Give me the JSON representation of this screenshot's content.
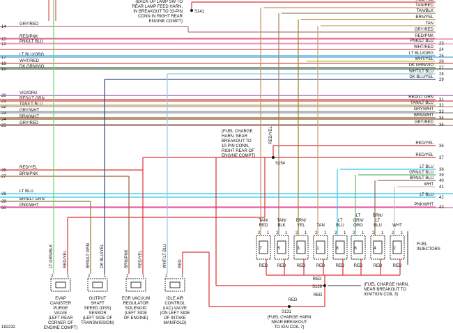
{
  "image_id": "182232",
  "pin_numbers": [
    "2",
    "1"
  ],
  "left_pins": [
    {
      "number": "14",
      "wire": "GRY/RED",
      "color": "#b07878"
    },
    {
      "number": "15",
      "wire": "RED/PNK",
      "color": "#e07090"
    },
    {
      "number": "16",
      "wire": "PNK/LT BLU",
      "color": "#e8a0c8"
    },
    {
      "number": "17",
      "wire": "LT BLU/ORG",
      "color": "#48a8d8"
    },
    {
      "number": "18",
      "wire": "WHT/RED",
      "color": "#d05050"
    },
    {
      "number": "19",
      "wire": "DK GRN/VIO",
      "color": "#406848"
    },
    {
      "number": "20",
      "wire": "VIO/ORG",
      "color": "#9060a8"
    },
    {
      "number": "21",
      "wire": "RED/LT GRN",
      "color": "#d04040"
    },
    {
      "number": "22",
      "wire": "TAN/LT BLU",
      "color": "#b89868"
    },
    {
      "number": "23",
      "wire": "GRY/WHT",
      "color": "#909090"
    },
    {
      "number": "24",
      "wire": "BRN/WHT",
      "color": "#8b5a2b"
    },
    {
      "number": "25",
      "wire": "GRY/RED",
      "color": "#a07070"
    },
    {
      "number": "26",
      "wire": "RED/YEL",
      "color": "#e03030"
    },
    {
      "number": "27",
      "wire": "BRN/PNK",
      "color": "#9b5a3b"
    },
    {
      "number": "28",
      "wire": "LT BLU",
      "color": "#30c8e8"
    },
    {
      "number": "29",
      "wire": "BRN/LT GRN",
      "color": "#8b7a3b"
    },
    {
      "number": "30",
      "wire": "PNK/WHT",
      "color": "#e060a0"
    }
  ],
  "right_pins": [
    {
      "wire": "RED/YEL",
      "color": "#e03030"
    },
    {
      "wire": "TAN/RED",
      "color": "#c89060"
    },
    {
      "wire": "TAN/BLK",
      "color": "#a08060"
    },
    {
      "wire": "BRN/YEL",
      "color": "#a08020"
    },
    {
      "wire": "TAN",
      "color": "#c8a070"
    },
    {
      "wire": "GRY/RED",
      "color": "#b07878"
    },
    {
      "wire": "RED/PNK",
      "color": "#e07090"
    },
    {
      "number": "23",
      "wire": "PNK/LT BLU",
      "color": "#e8a0c8"
    },
    {
      "number": "24",
      "wire": "WHT/RED",
      "color": "#d05050"
    },
    {
      "number": "25",
      "wire": "LT BLU/ORG",
      "color": "#48a8d8"
    },
    {
      "number": "26",
      "wire": "WHT/YEL",
      "color": "#c8c040"
    },
    {
      "number": "27",
      "wire": "DK GRN/VIO",
      "color": "#406848"
    },
    {
      "number": "28",
      "wire": "WHT/LT BLU",
      "color": "#90c8e8"
    },
    {
      "number": "29",
      "wire": "DK BLU/YEL",
      "color": "#304880"
    },
    {
      "number": "31",
      "wire": "RED/LT GRN",
      "color": "#d04040"
    },
    {
      "number": "32",
      "wire": "TAN/LT BLU",
      "color": "#b89868"
    },
    {
      "number": "33",
      "wire": "GRY/WHT",
      "color": "#909090"
    },
    {
      "number": "34",
      "wire": "BRN/WHT",
      "color": "#8b5a2b"
    },
    {
      "number": "35",
      "wire": "GRY/RED",
      "color": "#a07070"
    },
    {
      "number": "36",
      "wire": "RED/YEL",
      "color": "#e03030"
    },
    {
      "number": "37",
      "wire": "RED/YEL",
      "color": "#e03030"
    },
    {
      "number": "38",
      "wire": "LT BLU",
      "color": "#30c8e8"
    },
    {
      "number": "39",
      "wire": "GRN/LT BLU",
      "color": "#60b870"
    },
    {
      "number": "40",
      "wire": "BRN/LT BLU",
      "color": "#8b6a4b"
    },
    {
      "number": "41",
      "wire": "WHT",
      "color": "#c0c0c0"
    },
    {
      "number": "42",
      "wire": "LT BLU",
      "color": "#30c8e8"
    },
    {
      "number": "43",
      "wire": "PNK/WHT",
      "color": "#e060a0"
    }
  ],
  "splices": [
    {
      "id": "S141",
      "note": [
        "(BACK-UP LAMP SW TO",
        "REAR LAMP FEED HARN,",
        "IN BREAKOUT TO 33-PIN",
        "CONN IN RIGHT REAR",
        "ENGINE COMPT)"
      ]
    },
    {
      "id": "S154",
      "wire": "RED/YEL",
      "note": [
        "(FUEL CHARGE",
        "HARN, NEAR",
        "BREAKOUT TO",
        "10-PIN CONN,",
        "RIGHT REAR OF",
        "ENGINE COMPT)"
      ]
    },
    {
      "id": "S128",
      "note": [
        "(FUEL CHARGE HARN,",
        "NEAR BREAKOUT TO",
        "IGNITION COIL 3)"
      ]
    },
    {
      "id": "S131",
      "note": [
        "(FUEL CHARGE HARN",
        "NEAR BREAKOUT",
        "TO IGN COIL 7)"
      ]
    }
  ],
  "red_labels": [
    "RED",
    "RED",
    "RED"
  ],
  "components": [
    {
      "wires": [
        "LT GRN/BLK",
        "RED/YEL"
      ],
      "name": [
        "EVAP",
        "CANISTER",
        "PURGE",
        "VALVE",
        "(LEFT REAR",
        "CORNER OF",
        "ENGINE COMPT)"
      ]
    },
    {
      "wires": [
        "BRN/LT GRN",
        "DK BLU/YEL"
      ],
      "name": [
        "OUTPUT",
        "SHAFT",
        "SPEED (OSS)",
        "SENSOR",
        "(LEFT SIDE OF",
        "TRANSMISSION)"
      ]
    },
    {
      "wires": [
        "BRN/PNK",
        "RED/YEL"
      ],
      "name": [
        "EGR VACUUM",
        "REGULATOR",
        "SOLENOID",
        "(LEFT SIDE",
        "OF ENGINE)"
      ]
    },
    {
      "wires": [
        "WHT/LT BLU",
        "RED"
      ],
      "name": [
        "IDLE AIR",
        "CONTROL",
        "(IAC) VALVE",
        "(ON LEFT SIDE",
        "OF INTAKE",
        "MANIFOLD)"
      ]
    }
  ],
  "injectors": {
    "label": [
      "FUEL",
      "INJECTORS"
    ],
    "items": [
      {
        "wire": [
          "TAN/",
          "RED"
        ],
        "number": "7",
        "feed": "RED"
      },
      {
        "wire": [
          "TAN/",
          "BLK"
        ],
        "number": "5",
        "feed": "RED"
      },
      {
        "wire": [
          "BRN/",
          "YEL"
        ],
        "number": "3",
        "feed": "RED"
      },
      {
        "wire": [
          "TAN"
        ],
        "number": "1",
        "feed": "RED"
      },
      {
        "wire": [
          "LT",
          "BLU"
        ],
        "number": "8",
        "feed": "RED"
      },
      {
        "wire": [
          "LT",
          "GRN/",
          "ORG"
        ],
        "number": "6",
        "feed": "RED"
      },
      {
        "wire": [
          "BRN/",
          "LT",
          "BLU"
        ],
        "number": "4",
        "feed": "RED"
      },
      {
        "wire": [
          "WHT"
        ],
        "number": "2",
        "feed": "RED"
      }
    ]
  }
}
